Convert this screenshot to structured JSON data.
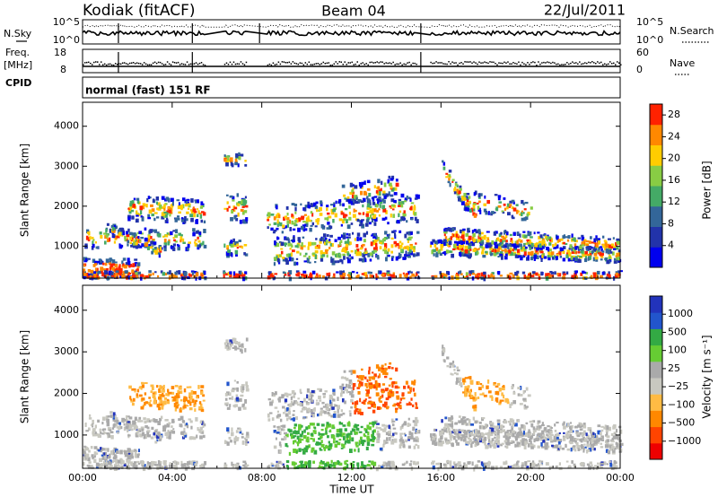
{
  "header": {
    "station": "Kodiak (fitACF)",
    "beam": "Beam 04",
    "date": "22/Jul/2011"
  },
  "left_labels": {
    "nsky": "N.Sky",
    "freq_line1": "Freq.",
    "freq_line2": "[MHz]",
    "cpid": "CPID"
  },
  "right_labels": {
    "nsearch": "N.Search",
    "nave": "Nave"
  },
  "nsky_ticks": [
    "10^5",
    "10^0"
  ],
  "nsearch_ticks": [
    "10^5",
    "10^0"
  ],
  "freq_ticks": [
    "18",
    "8"
  ],
  "nave_ticks": [
    "60",
    "0"
  ],
  "cpid_text": "normal (fast) 151 RF",
  "colors": {
    "power": [
      "#0000ee",
      "#2233aa",
      "#336699",
      "#44aa66",
      "#88cc44",
      "#ffcc00",
      "#ff8800",
      "#ff2200"
    ],
    "velocity": [
      "#ee0000",
      "#ff4400",
      "#ff8800",
      "#ffbb44",
      "#c8c8c0",
      "#aaaaaa",
      "#66cc33",
      "#33aa44",
      "#2255cc",
      "#2233bb"
    ]
  },
  "chart_data": [
    {
      "type": "heatmap",
      "panel": "power",
      "ylabel": "Slant Range [km]",
      "ylim": [
        200,
        4600
      ],
      "yticks": [
        "1000",
        "2000",
        "3000",
        "4000"
      ],
      "xlim_hours": [
        0,
        24
      ],
      "xticks": [
        "00:00",
        "04:00",
        "08:00",
        "12:00",
        "16:00",
        "20:00",
        "00:00"
      ],
      "colorbar_label": "Power [dB]",
      "colorbar_ticks": [
        "4",
        "8",
        "12",
        "16",
        "20",
        "24",
        "28"
      ],
      "colorbar_range": [
        0,
        30
      ]
    },
    {
      "type": "heatmap",
      "panel": "velocity",
      "ylabel": "Slant Range [km]",
      "ylim": [
        200,
        4600
      ],
      "yticks": [
        "1000",
        "2000",
        "3000",
        "4000"
      ],
      "xlim_hours": [
        0,
        24
      ],
      "xticks": [
        "00:00",
        "04:00",
        "08:00",
        "12:00",
        "16:00",
        "20:00",
        "00:00"
      ],
      "xlabel": "Time UT",
      "colorbar_label": "Velocity [m s⁻¹]",
      "colorbar_ticks": [
        "1000",
        "500",
        "100",
        "25",
        "−25",
        "−100",
        "−500",
        "−1000"
      ]
    }
  ]
}
